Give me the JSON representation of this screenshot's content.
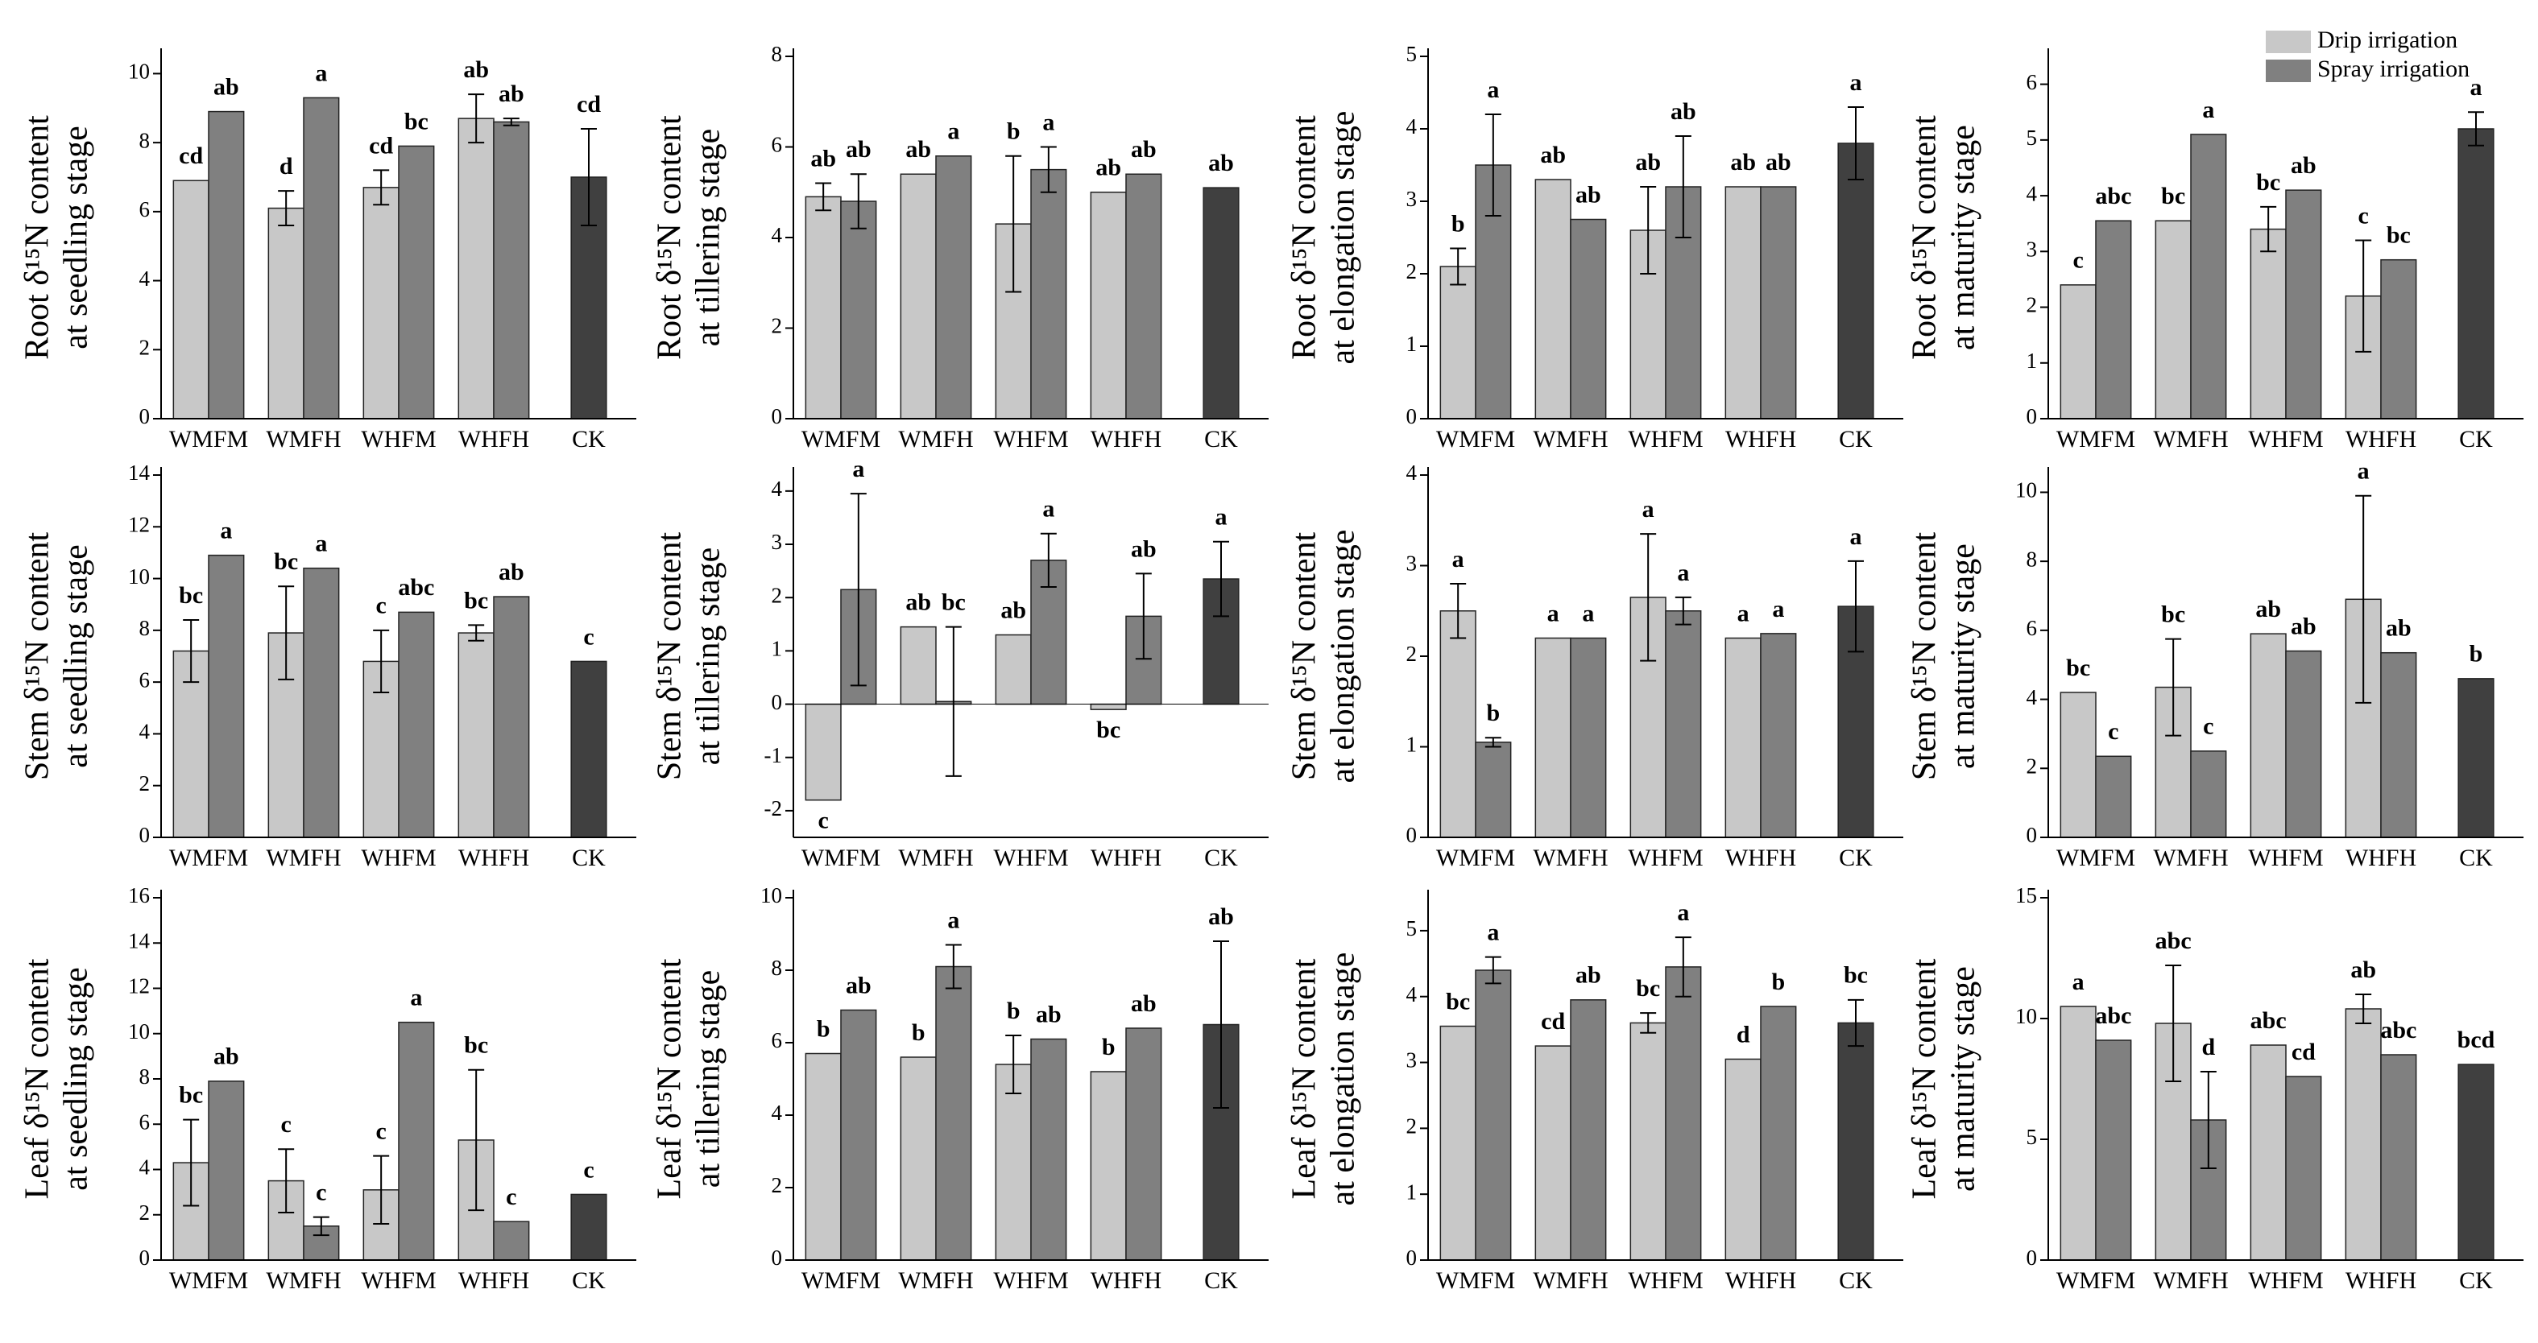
{
  "chart_data": [
    {
      "type": "bar",
      "ylabel": [
        "Root δ¹⁵N content",
        "at seedling stage"
      ],
      "categories": [
        "WMFM",
        "WMFH",
        "WHFM",
        "WHFH",
        "CK"
      ],
      "ylim": [
        0,
        10.5
      ],
      "yticks": [
        0,
        2,
        4,
        6,
        8,
        10
      ],
      "series": [
        {
          "color": "#c8c8c8",
          "values": [
            6.9,
            6.1,
            6.7,
            8.7,
            null
          ],
          "errors": [
            0,
            0.5,
            0.5,
            0.7,
            null
          ],
          "labels": [
            "cd",
            "d",
            "cd",
            "ab",
            null
          ]
        },
        {
          "color": "#808080",
          "values": [
            8.9,
            9.3,
            7.9,
            8.6,
            null
          ],
          "errors": [
            0,
            0,
            0,
            0.1,
            null
          ],
          "labels": [
            "ab",
            "a",
            "bc",
            "ab",
            null
          ]
        },
        {
          "color": "#404040",
          "values": [
            null,
            null,
            null,
            null,
            7.0
          ],
          "errors": [
            null,
            null,
            null,
            null,
            1.4
          ],
          "labels": [
            null,
            null,
            null,
            null,
            "cd"
          ]
        }
      ]
    },
    {
      "type": "bar",
      "ylabel": [
        "Root δ¹⁵N content",
        "at tillering stage"
      ],
      "categories": [
        "WMFM",
        "WMFH",
        "WHFM",
        "WHFH",
        "CK"
      ],
      "ylim": [
        0,
        8
      ],
      "yticks": [
        0,
        2,
        4,
        6,
        8
      ],
      "series": [
        {
          "color": "#c8c8c8",
          "values": [
            4.9,
            5.4,
            4.3,
            5.0,
            null
          ],
          "errors": [
            0.3,
            0,
            1.5,
            0,
            null
          ],
          "labels": [
            "ab",
            "ab",
            "b",
            "ab",
            null
          ]
        },
        {
          "color": "#808080",
          "values": [
            4.8,
            5.8,
            5.5,
            5.4,
            null
          ],
          "errors": [
            0.6,
            0,
            0.5,
            0,
            null
          ],
          "labels": [
            "ab",
            "a",
            "a",
            "ab",
            null
          ]
        },
        {
          "color": "#404040",
          "values": [
            null,
            null,
            null,
            null,
            5.1
          ],
          "errors": [
            null,
            null,
            null,
            null,
            0
          ],
          "labels": [
            null,
            null,
            null,
            null,
            "ab"
          ]
        }
      ]
    },
    {
      "type": "bar",
      "ylabel": [
        "Root δ¹⁵N content",
        "at elongation stage"
      ],
      "categories": [
        "WMFM",
        "WMFH",
        "WHFM",
        "WHFH",
        "CK"
      ],
      "ylim": [
        0,
        5
      ],
      "yticks": [
        0,
        1,
        2,
        3,
        4,
        5
      ],
      "series": [
        {
          "color": "#c8c8c8",
          "values": [
            2.1,
            3.3,
            2.6,
            3.2,
            null
          ],
          "errors": [
            0.25,
            0,
            0.6,
            0,
            null
          ],
          "labels": [
            "b",
            "ab",
            "ab",
            "ab",
            null
          ]
        },
        {
          "color": "#808080",
          "values": [
            3.5,
            2.75,
            3.2,
            3.2,
            null
          ],
          "errors": [
            0.7,
            0,
            0.7,
            0,
            null
          ],
          "labels": [
            "a",
            "ab",
            "ab",
            "ab",
            null
          ]
        },
        {
          "color": "#404040",
          "values": [
            null,
            null,
            null,
            null,
            3.8
          ],
          "errors": [
            null,
            null,
            null,
            null,
            0.5
          ],
          "labels": [
            null,
            null,
            null,
            null,
            "a"
          ]
        }
      ]
    },
    {
      "type": "bar",
      "ylabel": [
        "Root δ¹⁵N content",
        "at maturity stage"
      ],
      "categories": [
        "WMFM",
        "WMFH",
        "WHFM",
        "WHFH",
        "CK"
      ],
      "ylim": [
        0,
        6.5
      ],
      "yticks": [
        0,
        1,
        2,
        3,
        4,
        5,
        6
      ],
      "series": [
        {
          "name": "Drip irrigation",
          "color": "#c8c8c8",
          "values": [
            2.4,
            3.55,
            3.4,
            2.2,
            null
          ],
          "errors": [
            0,
            0,
            0.4,
            1.0,
            null
          ],
          "labels": [
            "c",
            "bc",
            "bc",
            "c",
            null
          ]
        },
        {
          "name": "Spray irrigation",
          "color": "#808080",
          "values": [
            3.55,
            5.1,
            4.1,
            2.85,
            null
          ],
          "errors": [
            0,
            0,
            0,
            0,
            null
          ],
          "labels": [
            "abc",
            "a",
            "ab",
            "bc",
            null
          ]
        },
        {
          "color": "#404040",
          "values": [
            null,
            null,
            null,
            null,
            5.2
          ],
          "errors": [
            null,
            null,
            null,
            null,
            0.3
          ],
          "labels": [
            null,
            null,
            null,
            null,
            "a"
          ]
        }
      ]
    },
    {
      "type": "bar",
      "ylabel": [
        "Stem δ¹⁵N content",
        "at seedling stage"
      ],
      "categories": [
        "WMFM",
        "WMFH",
        "WHFM",
        "WHFH",
        "CK"
      ],
      "ylim": [
        0,
        14
      ],
      "yticks": [
        0,
        2,
        4,
        6,
        8,
        10,
        12,
        14
      ],
      "series": [
        {
          "color": "#c8c8c8",
          "values": [
            7.2,
            7.9,
            6.8,
            7.9,
            null
          ],
          "errors": [
            1.2,
            1.8,
            1.2,
            0.3,
            null
          ],
          "labels": [
            "bc",
            "bc",
            "c",
            "bc",
            null
          ]
        },
        {
          "color": "#808080",
          "values": [
            10.9,
            10.4,
            8.7,
            9.3,
            null
          ],
          "errors": [
            0,
            0,
            0,
            0,
            null
          ],
          "labels": [
            "a",
            "a",
            "abc",
            "ab",
            null
          ]
        },
        {
          "color": "#404040",
          "values": [
            null,
            null,
            null,
            null,
            6.8
          ],
          "errors": [
            null,
            null,
            null,
            null,
            0
          ],
          "labels": [
            null,
            null,
            null,
            null,
            "c"
          ]
        }
      ]
    },
    {
      "type": "bar",
      "ylabel": [
        "Stem δ¹⁵N content",
        "at tillering stage"
      ],
      "categories": [
        "WMFM",
        "WMFH",
        "WHFM",
        "WHFH",
        "CK"
      ],
      "ylim": [
        -2.5,
        4.3
      ],
      "yticks": [
        -2,
        -1,
        0,
        1,
        2,
        3,
        4
      ],
      "series": [
        {
          "color": "#c8c8c8",
          "values": [
            -1.8,
            1.45,
            1.3,
            -0.1,
            null
          ],
          "errors": [
            0,
            0,
            0,
            0,
            null
          ],
          "labels": [
            "c",
            "ab",
            "ab",
            "bc",
            null
          ]
        },
        {
          "color": "#808080",
          "values": [
            2.15,
            0.05,
            2.7,
            1.65,
            null
          ],
          "errors": [
            1.8,
            1.4,
            0.5,
            0.8,
            null
          ],
          "labels": [
            "a",
            "bc",
            "a",
            "ab",
            null
          ]
        },
        {
          "color": "#404040",
          "values": [
            null,
            null,
            null,
            null,
            2.35
          ],
          "errors": [
            null,
            null,
            null,
            null,
            0.7
          ],
          "labels": [
            null,
            null,
            null,
            null,
            "a"
          ]
        }
      ]
    },
    {
      "type": "bar",
      "ylabel": [
        "Stem δ¹⁵N content",
        "at elongation stage"
      ],
      "categories": [
        "WMFM",
        "WMFH",
        "WHFM",
        "WHFH",
        "CK"
      ],
      "ylim": [
        0,
        4
      ],
      "yticks": [
        0,
        1,
        2,
        3,
        4
      ],
      "series": [
        {
          "color": "#c8c8c8",
          "values": [
            2.5,
            2.2,
            2.65,
            2.2,
            null
          ],
          "errors": [
            0.3,
            0,
            0.7,
            0,
            null
          ],
          "labels": [
            "a",
            "a",
            "a",
            "a",
            null
          ]
        },
        {
          "color": "#808080",
          "values": [
            1.05,
            2.2,
            2.5,
            2.25,
            null
          ],
          "errors": [
            0.05,
            0,
            0.15,
            0,
            null
          ],
          "labels": [
            "b",
            "a",
            "a",
            "a",
            null
          ]
        },
        {
          "color": "#404040",
          "values": [
            null,
            null,
            null,
            null,
            2.55
          ],
          "errors": [
            null,
            null,
            null,
            null,
            0.5
          ],
          "labels": [
            null,
            null,
            null,
            null,
            "a"
          ]
        }
      ]
    },
    {
      "type": "bar",
      "ylabel": [
        "Stem δ¹⁵N content",
        "at maturity stage"
      ],
      "categories": [
        "WMFM",
        "WMFH",
        "WHFM",
        "WHFH",
        "CK"
      ],
      "ylim": [
        0,
        10.5
      ],
      "yticks": [
        0,
        2,
        4,
        6,
        8,
        10
      ],
      "series": [
        {
          "color": "#c8c8c8",
          "values": [
            4.2,
            4.35,
            5.9,
            6.9,
            null
          ],
          "errors": [
            0,
            1.4,
            0,
            3.0,
            null
          ],
          "labels": [
            "bc",
            "bc",
            "ab",
            "a",
            null
          ]
        },
        {
          "color": "#808080",
          "values": [
            2.35,
            2.5,
            5.4,
            5.35,
            null
          ],
          "errors": [
            0,
            0,
            0,
            0,
            null
          ],
          "labels": [
            "c",
            "c",
            "ab",
            "ab",
            null
          ]
        },
        {
          "color": "#404040",
          "values": [
            null,
            null,
            null,
            null,
            4.6
          ],
          "errors": [
            null,
            null,
            null,
            null,
            0
          ],
          "labels": [
            null,
            null,
            null,
            null,
            "b"
          ]
        }
      ]
    },
    {
      "type": "bar",
      "ylabel": [
        "Leaf δ¹⁵N content",
        "at seedling stage"
      ],
      "categories": [
        "WMFM",
        "WMFH",
        "WHFM",
        "WHFH",
        "CK"
      ],
      "ylim": [
        0,
        16
      ],
      "yticks": [
        0,
        2,
        4,
        6,
        8,
        10,
        12,
        14,
        16
      ],
      "series": [
        {
          "color": "#c8c8c8",
          "values": [
            4.3,
            3.5,
            3.1,
            5.3,
            null
          ],
          "errors": [
            1.9,
            1.4,
            1.5,
            3.1,
            null
          ],
          "labels": [
            "bc",
            "c",
            "c",
            "bc",
            null
          ]
        },
        {
          "color": "#808080",
          "values": [
            7.9,
            1.5,
            10.5,
            1.7,
            null
          ],
          "errors": [
            0,
            0.4,
            0,
            0,
            null
          ],
          "labels": [
            "ab",
            "c",
            "a",
            "c",
            null
          ]
        },
        {
          "color": "#404040",
          "values": [
            null,
            null,
            null,
            null,
            2.9
          ],
          "errors": [
            null,
            null,
            null,
            null,
            0
          ],
          "labels": [
            null,
            null,
            null,
            null,
            "c"
          ]
        }
      ]
    },
    {
      "type": "bar",
      "ylabel": [
        "Leaf δ¹⁵N content",
        "at tillering stage"
      ],
      "categories": [
        "WMFM",
        "WMFH",
        "WHFM",
        "WHFH",
        "CK"
      ],
      "ylim": [
        0,
        10
      ],
      "yticks": [
        0,
        2,
        4,
        6,
        8,
        10
      ],
      "series": [
        {
          "color": "#c8c8c8",
          "values": [
            5.7,
            5.6,
            5.4,
            5.2,
            null
          ],
          "errors": [
            0,
            0,
            0.8,
            0,
            null
          ],
          "labels": [
            "b",
            "b",
            "b",
            "b",
            null
          ]
        },
        {
          "color": "#808080",
          "values": [
            6.9,
            8.1,
            6.1,
            6.4,
            null
          ],
          "errors": [
            0,
            0.6,
            0,
            0,
            null
          ],
          "labels": [
            "ab",
            "a",
            "ab",
            "ab",
            null
          ]
        },
        {
          "color": "#404040",
          "values": [
            null,
            null,
            null,
            null,
            6.5
          ],
          "errors": [
            null,
            null,
            null,
            null,
            2.3
          ],
          "labels": [
            null,
            null,
            null,
            null,
            "ab"
          ]
        }
      ]
    },
    {
      "type": "bar",
      "ylabel": [
        "Leaf δ¹⁵N content",
        "at elongation stage"
      ],
      "categories": [
        "WMFM",
        "WMFH",
        "WHFM",
        "WHFH",
        "CK"
      ],
      "ylim": [
        0,
        5.5
      ],
      "yticks": [
        0,
        1,
        2,
        3,
        4,
        5
      ],
      "series": [
        {
          "color": "#c8c8c8",
          "values": [
            3.55,
            3.25,
            3.6,
            3.05,
            null
          ],
          "errors": [
            0,
            0,
            0.15,
            0,
            null
          ],
          "labels": [
            "bc",
            "cd",
            "bc",
            "d",
            null
          ]
        },
        {
          "color": "#808080",
          "values": [
            4.4,
            3.95,
            4.45,
            3.85,
            null
          ],
          "errors": [
            0.2,
            0,
            0.45,
            0,
            null
          ],
          "labels": [
            "a",
            "ab",
            "a",
            "b",
            null
          ]
        },
        {
          "color": "#404040",
          "values": [
            null,
            null,
            null,
            null,
            3.6
          ],
          "errors": [
            null,
            null,
            null,
            null,
            0.35
          ],
          "labels": [
            null,
            null,
            null,
            null,
            "bc"
          ]
        }
      ]
    },
    {
      "type": "bar",
      "ylabel": [
        "Leaf δ¹⁵N content",
        "at maturity stage"
      ],
      "categories": [
        "WMFM",
        "WMFH",
        "WHFM",
        "WHFH",
        "CK"
      ],
      "ylim": [
        0,
        15
      ],
      "yticks": [
        0,
        5,
        10,
        15
      ],
      "series": [
        {
          "color": "#c8c8c8",
          "values": [
            10.5,
            9.8,
            8.9,
            10.4,
            null
          ],
          "errors": [
            0,
            2.4,
            0,
            0.6,
            null
          ],
          "labels": [
            "a",
            "abc",
            "abc",
            "ab",
            null
          ]
        },
        {
          "color": "#808080",
          "values": [
            9.1,
            5.8,
            7.6,
            8.5,
            null
          ],
          "errors": [
            0,
            2.0,
            0,
            0,
            null
          ],
          "labels": [
            "abc",
            "d",
            "cd",
            "abc",
            null
          ]
        },
        {
          "color": "#404040",
          "values": [
            null,
            null,
            null,
            null,
            8.1
          ],
          "errors": [
            null,
            null,
            null,
            null,
            0
          ],
          "labels": [
            null,
            null,
            null,
            null,
            "bcd"
          ]
        }
      ]
    }
  ]
}
